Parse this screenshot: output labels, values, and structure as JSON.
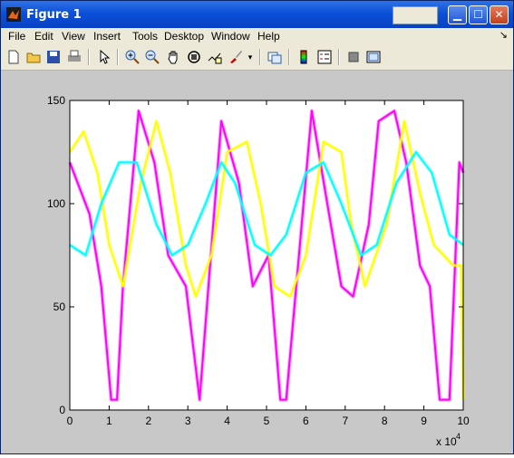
{
  "window": {
    "title": "Figure 1"
  },
  "menu": [
    "File",
    "Edit",
    "View",
    "Insert",
    "Tools",
    "Desktop",
    "Window",
    "Help"
  ],
  "menu_dock_glyph": "↘",
  "toolbar_icons": [
    "new-figure-icon",
    "open-file-icon",
    "save-icon",
    "print-icon",
    "edit-plot-arrow-icon",
    "zoom-in-icon",
    "zoom-out-icon",
    "pan-hand-icon",
    "rotate-3d-icon",
    "data-cursor-icon",
    "brush-icon",
    "brush-dropdown-icon",
    "link-plot-icon",
    "colorbar-icon",
    "legend-icon",
    "hide-plot-tools-icon",
    "show-plot-tools-icon"
  ],
  "colors": {
    "magenta": "#ff00ff",
    "yellow": "#ffff00",
    "cyan": "#00ffff"
  },
  "chart_data": {
    "type": "line",
    "title": "",
    "xlabel": "",
    "ylabel": "",
    "xlim": [
      0,
      100000
    ],
    "ylim": [
      0,
      150
    ],
    "x_ticks": [
      0,
      1,
      2,
      3,
      4,
      5,
      6,
      7,
      8,
      9,
      10
    ],
    "y_ticks": [
      0,
      50,
      100,
      150
    ],
    "x_multiplier": "x 10",
    "x_multiplier_exp": "4",
    "series": [
      {
        "color": "magenta",
        "x": [
          0,
          5000,
          8000,
          10500,
          12000,
          13500,
          17500,
          21500,
          25000,
          29500,
          33000,
          38500,
          43000,
          46500,
          50500,
          53500,
          55000,
          61500,
          65000,
          69000,
          72000,
          76000,
          78500,
          82500,
          85500,
          89000,
          91500,
          94000,
          96500,
          99000,
          100000
        ],
        "y": [
          120,
          95,
          60,
          5,
          5,
          60,
          145,
          120,
          75,
          60,
          5,
          140,
          110,
          60,
          75,
          5,
          5,
          145,
          105,
          60,
          55,
          90,
          140,
          145,
          120,
          70,
          60,
          5,
          5,
          120,
          115
        ]
      },
      {
        "color": "yellow",
        "x": [
          0,
          3500,
          7000,
          10000,
          13500,
          18000,
          22000,
          25500,
          29500,
          32000,
          36000,
          40000,
          45000,
          48500,
          52000,
          56000,
          60000,
          64500,
          69000,
          71500,
          75000,
          80500,
          85000,
          89000,
          92500,
          97500,
          99500,
          100000
        ],
        "y": [
          125,
          135,
          115,
          80,
          60,
          110,
          140,
          115,
          70,
          55,
          75,
          125,
          130,
          100,
          60,
          55,
          75,
          130,
          125,
          90,
          60,
          90,
          140,
          105,
          80,
          70,
          70,
          5
        ]
      },
      {
        "color": "cyan",
        "x": [
          0,
          4000,
          8000,
          12500,
          17000,
          22000,
          26000,
          30000,
          34500,
          38500,
          42000,
          47000,
          51000,
          55000,
          60000,
          64500,
          69000,
          74000,
          78000,
          83000,
          88000,
          92000,
          96500,
          100000
        ],
        "y": [
          80,
          75,
          100,
          120,
          120,
          90,
          75,
          80,
          100,
          120,
          110,
          80,
          75,
          85,
          115,
          120,
          100,
          75,
          80,
          110,
          125,
          115,
          85,
          80
        ]
      }
    ]
  }
}
